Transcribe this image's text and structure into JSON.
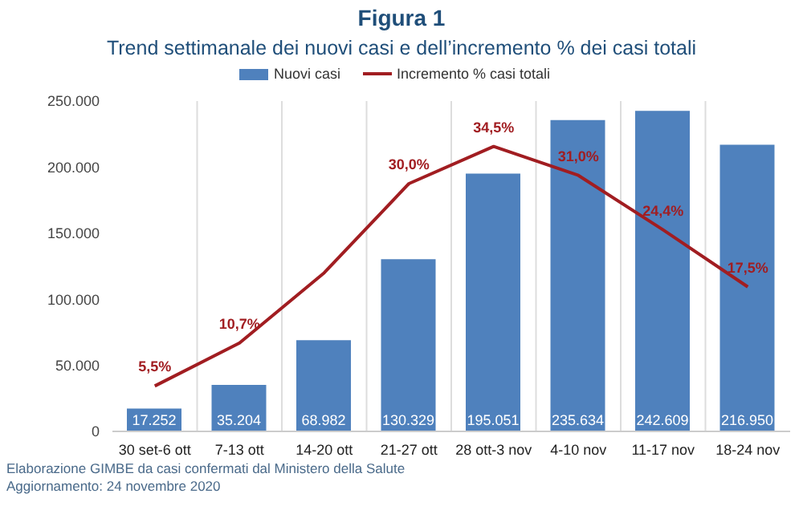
{
  "chart_data": {
    "type": "bar",
    "title": "Figura 1",
    "subtitle": "Trend settimanale dei nuovi casi e dell’incremento % dei casi totali",
    "categories": [
      "30 set-6 ott",
      "7-13 ott",
      "14-20 ott",
      "21-27 ott",
      "28 ott-3 nov",
      "4-10 nov",
      "11-17 nov",
      "18-24 nov"
    ],
    "series": [
      {
        "name": "Nuovi casi",
        "color": "#4f81bd",
        "values": [
          17252,
          35204,
          68982,
          130329,
          195051,
          235634,
          242609,
          216950
        ],
        "value_labels": [
          "17.252",
          "35.204",
          "68.982",
          "130.329",
          "195.051",
          "235.634",
          "242.609",
          "216.950"
        ]
      },
      {
        "name": "Incremento % casi totali",
        "type": "line",
        "axis": "y2",
        "color": "#a11d21",
        "values": [
          5.5,
          10.7,
          19.2,
          30.0,
          34.5,
          31.0,
          24.4,
          17.5
        ],
        "value_labels": [
          "5,5%",
          "10,7%",
          null,
          "30,0%",
          "34,5%",
          "31,0%",
          "24,4%",
          "17,5%"
        ]
      }
    ],
    "ylim": [
      0,
      250000
    ],
    "yticks": [
      0,
      {
        "value": 50000,
        "label": "50.000"
      },
      {
        "value": 100000,
        "label": "100.000"
      },
      {
        "value": 150000,
        "label": "150.000"
      },
      {
        "value": 200000,
        "label": "200.000"
      },
      {
        "value": 250000,
        "label": "250.000"
      }
    ],
    "y2lim": [
      0,
      40
    ],
    "grid": "x",
    "legend": "top",
    "marker": "none",
    "line_style": "solid",
    "annotations": [
      "Elaborazione GIMBE da casi confermati dal Ministero della Salute",
      "Aggiornamento: 24 novembre 2020"
    ]
  }
}
